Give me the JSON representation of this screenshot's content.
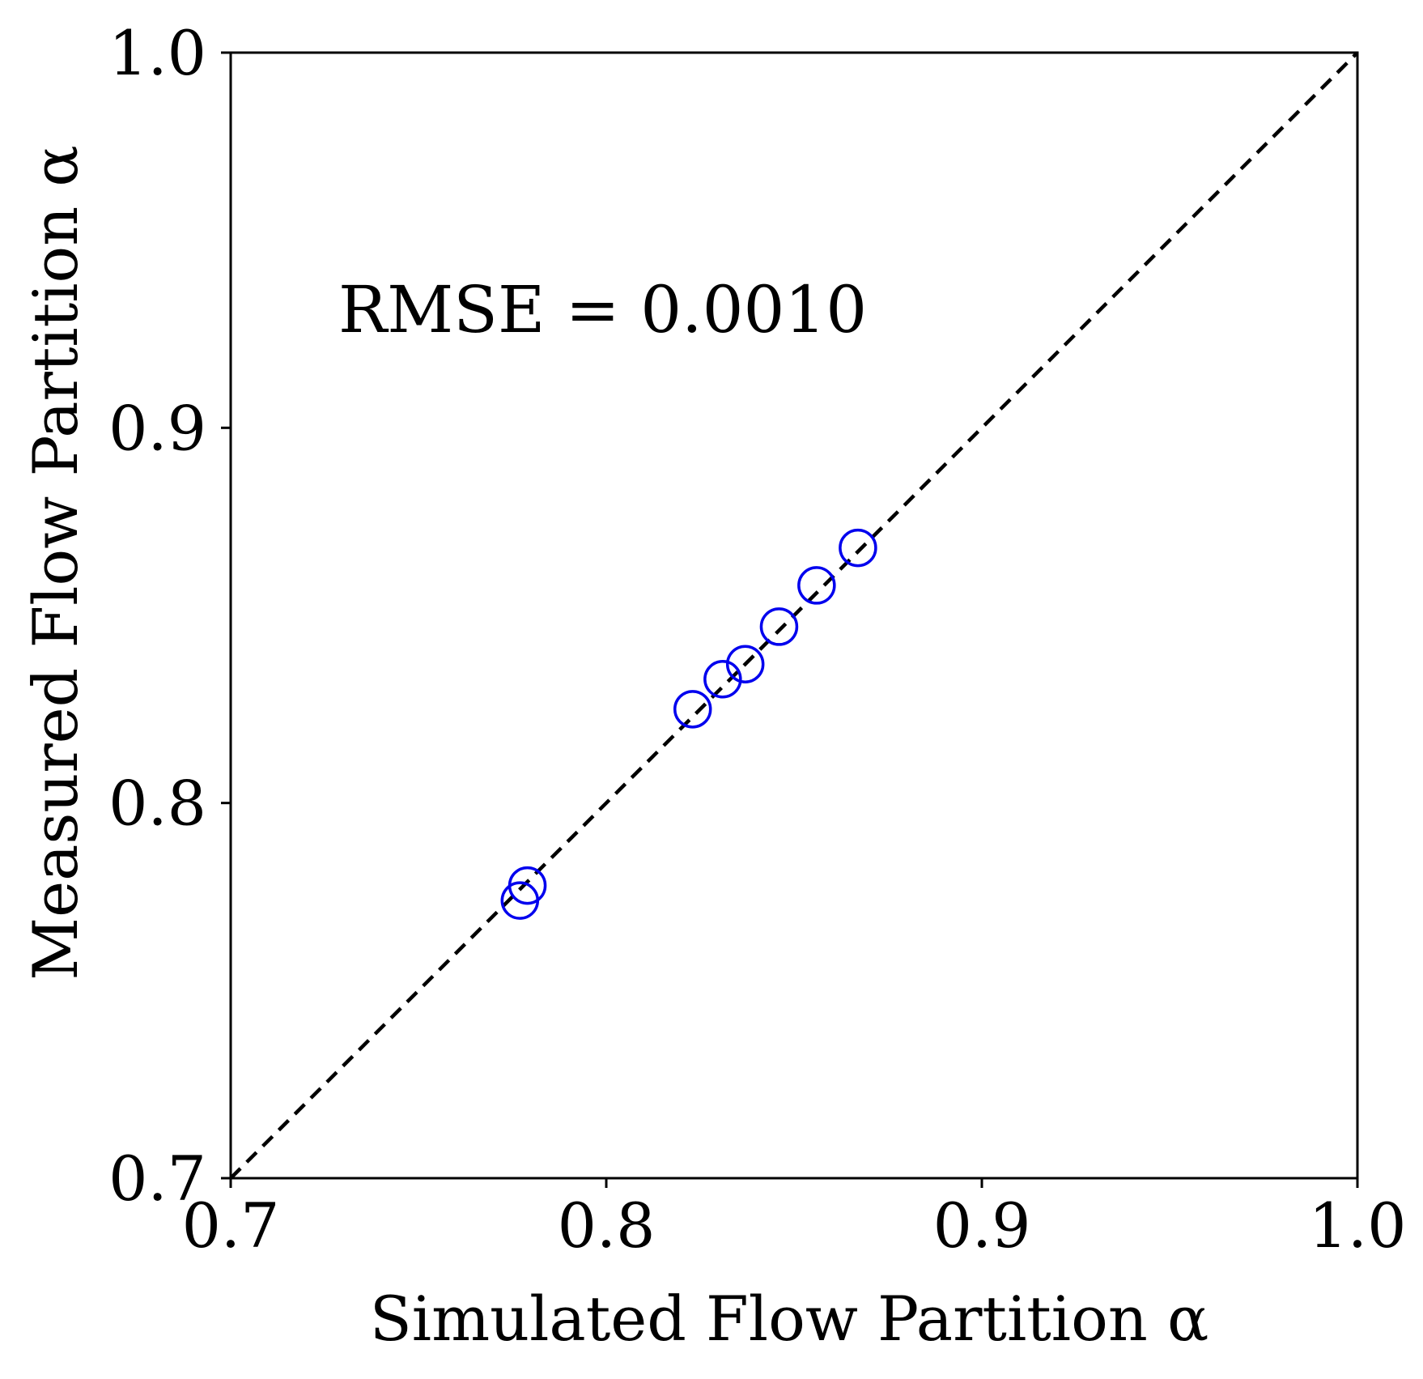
{
  "chart_data": {
    "type": "scatter",
    "title": "",
    "xlabel": "Simulated Flow Partition α",
    "ylabel": "Measured Flow Partition α",
    "xlim": [
      0.7,
      1.0
    ],
    "ylim": [
      0.7,
      1.0
    ],
    "x_ticks": [
      "0.7",
      "0.8",
      "0.9",
      "1.0"
    ],
    "y_ticks": [
      "0.7",
      "0.8",
      "0.9",
      "1.0"
    ],
    "x_tick_values": [
      0.7,
      0.8,
      0.9,
      1.0
    ],
    "y_tick_values": [
      0.7,
      0.8,
      0.9,
      1.0
    ],
    "grid": false,
    "annotation": "RMSE = 0.0010",
    "reference_line": {
      "from": [
        0.7,
        0.7
      ],
      "to": [
        1.0,
        1.0
      ],
      "style": "dashed",
      "color": "#000000"
    },
    "marker_color": "#0000ee",
    "points": [
      {
        "x": 0.777,
        "y": 0.774
      },
      {
        "x": 0.779,
        "y": 0.778
      },
      {
        "x": 0.823,
        "y": 0.825
      },
      {
        "x": 0.831,
        "y": 0.833
      },
      {
        "x": 0.837,
        "y": 0.837
      },
      {
        "x": 0.846,
        "y": 0.847
      },
      {
        "x": 0.856,
        "y": 0.858
      },
      {
        "x": 0.867,
        "y": 0.868
      }
    ]
  }
}
